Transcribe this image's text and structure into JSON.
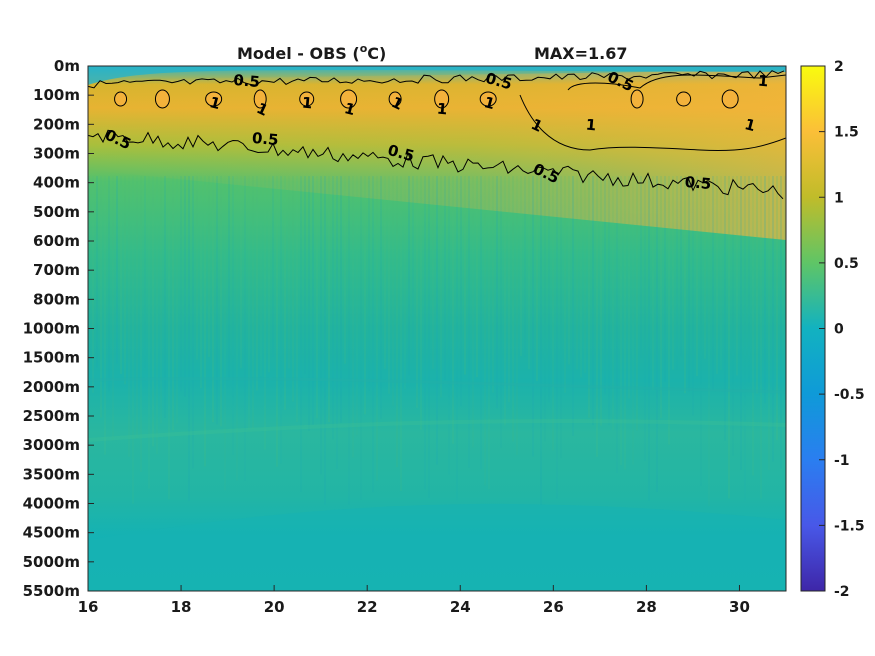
{
  "chart_data": {
    "type": "heatmap",
    "title_left": "Model - OBS (",
    "title_unit_sup": "o",
    "title_unit_rest": "C)",
    "title_right": "MAX=1.67",
    "x": {
      "range": [
        16,
        31
      ],
      "ticks": [
        16,
        18,
        20,
        22,
        24,
        26,
        28,
        30
      ],
      "tick_labels": [
        "16",
        "18",
        "20",
        "22",
        "24",
        "26",
        "28",
        "30"
      ]
    },
    "y": {
      "tick_labels": [
        "0m",
        "100m",
        "200m",
        "300m",
        "400m",
        "500m",
        "600m",
        "700m",
        "800m",
        "1000m",
        "1500m",
        "2000m",
        "2500m",
        "3000m",
        "3500m",
        "4000m",
        "4500m",
        "5000m",
        "5500m"
      ]
    },
    "colorbar": {
      "range": [
        -2,
        2
      ],
      "ticks": [
        2,
        1.5,
        1,
        0.5,
        0,
        -0.5,
        -1,
        -1.5,
        -2
      ],
      "tick_labels": [
        "2",
        "1.5",
        "1",
        "0.5",
        "0",
        "-0.5",
        "-1",
        "-1.5",
        "-2"
      ]
    },
    "contour_levels": [
      0.5,
      1
    ],
    "contour_labels": [
      {
        "text": "0.5",
        "x": 19.4,
        "level": "100m"
      },
      {
        "text": "0.5",
        "x": 24.8,
        "level": "100m"
      },
      {
        "text": "0.5",
        "x": 27.4,
        "level": "100m"
      },
      {
        "text": "1",
        "x": 30.5,
        "level": "100m"
      },
      {
        "text": "1",
        "x": 18.7,
        "level": "100m-200m"
      },
      {
        "text": "1",
        "x": 19.7,
        "level": "100m-200m"
      },
      {
        "text": "1",
        "x": 20.7,
        "level": "100m-200m"
      },
      {
        "text": "1",
        "x": 21.6,
        "level": "100m-200m"
      },
      {
        "text": "1",
        "x": 22.6,
        "level": "100m-200m"
      },
      {
        "text": "1",
        "x": 23.6,
        "level": "100m-200m"
      },
      {
        "text": "1",
        "x": 24.6,
        "level": "100m-200m"
      },
      {
        "text": "1",
        "x": 25.6,
        "level": "200m"
      },
      {
        "text": "1",
        "x": 26.8,
        "level": "200m"
      },
      {
        "text": "1",
        "x": 30.2,
        "level": "200m"
      },
      {
        "text": "0.5",
        "x": 16.6,
        "level": "200m-300m"
      },
      {
        "text": "0.5",
        "x": 19.8,
        "level": "200m-300m"
      },
      {
        "text": "0.5",
        "x": 22.7,
        "level": "300m"
      },
      {
        "text": "0.5",
        "x": 25.8,
        "level": "300m-400m"
      },
      {
        "text": "0.5",
        "x": 29.1,
        "level": "300m-400m"
      }
    ],
    "grid": false,
    "max_value": 1.67
  }
}
